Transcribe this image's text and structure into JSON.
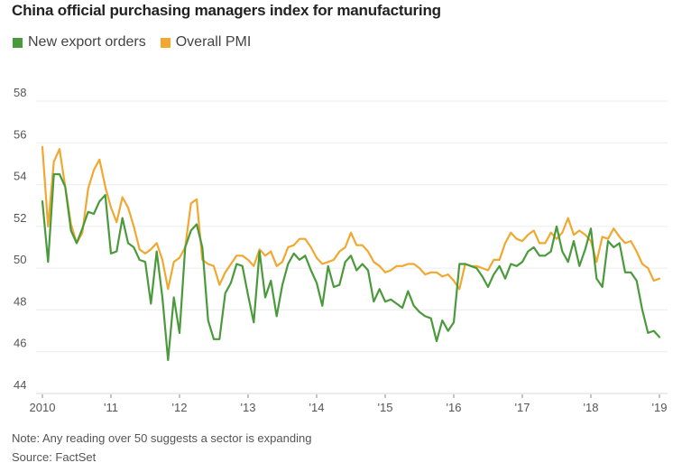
{
  "chart_data": {
    "type": "line",
    "title": "China official purchasing managers index for manufacturing",
    "xlabel": "",
    "ylabel": "",
    "ylim": [
      44,
      58
    ],
    "yticks": [
      44,
      46,
      48,
      50,
      52,
      54,
      56,
      58
    ],
    "xlim": [
      "2010-01",
      "2019-01"
    ],
    "xticks": [
      {
        "year": 2010,
        "label": "2010"
      },
      {
        "year": 2011,
        "label": "'11"
      },
      {
        "year": 2012,
        "label": "'12"
      },
      {
        "year": 2013,
        "label": "'13"
      },
      {
        "year": 2014,
        "label": "'14"
      },
      {
        "year": 2015,
        "label": "'15"
      },
      {
        "year": 2016,
        "label": "'16"
      },
      {
        "year": 2017,
        "label": "'17"
      },
      {
        "year": 2018,
        "label": "'18"
      },
      {
        "year": 2019,
        "label": "'19"
      }
    ],
    "grid": true,
    "legend": "top-left",
    "frequency": "monthly",
    "start": "2010-01",
    "series": [
      {
        "name": "New export orders",
        "color": "#4a9a3c",
        "values": [
          53.2,
          50.3,
          54.5,
          54.5,
          53.9,
          51.8,
          51.2,
          51.9,
          52.7,
          52.6,
          53.2,
          53.5,
          50.7,
          50.8,
          52.4,
          51.2,
          51.0,
          50.4,
          50.3,
          48.3,
          50.8,
          48.6,
          45.6,
          48.6,
          46.9,
          51.0,
          51.8,
          52.1,
          51.0,
          47.5,
          46.6,
          46.6,
          48.8,
          49.3,
          50.2,
          50.1,
          48.7,
          47.4,
          50.8,
          48.6,
          49.4,
          47.7,
          49.2,
          50.2,
          50.7,
          50.4,
          50.6,
          49.9,
          49.3,
          48.2,
          50.1,
          49.1,
          49.2,
          50.3,
          50.6,
          49.9,
          50.2,
          49.9,
          48.4,
          49.0,
          48.4,
          48.5,
          48.3,
          48.1,
          48.9,
          48.2,
          47.9,
          47.7,
          47.6,
          46.5,
          47.5,
          47.0,
          47.4,
          50.2,
          50.2,
          50.1,
          50.0,
          49.6,
          49.1,
          49.7,
          50.1,
          49.5,
          50.2,
          50.1,
          50.3,
          50.8,
          51.0,
          50.6,
          50.6,
          50.8,
          52.0,
          50.8,
          50.3,
          51.3,
          50.1,
          50.9,
          51.9,
          49.5,
          49.1,
          51.3,
          51.0,
          51.2,
          49.8,
          49.8,
          49.4,
          48.0,
          46.9,
          47.0,
          46.7
        ]
      },
      {
        "name": "Overall PMI",
        "color": "#f0a830",
        "values": [
          55.8,
          52.0,
          55.1,
          55.7,
          53.9,
          52.1,
          51.2,
          51.7,
          53.8,
          54.7,
          55.2,
          53.9,
          52.9,
          52.2,
          53.4,
          52.9,
          52.0,
          50.9,
          50.7,
          50.9,
          51.2,
          50.4,
          49.0,
          50.3,
          50.5,
          51.0,
          53.1,
          53.3,
          50.4,
          50.2,
          50.1,
          49.2,
          49.8,
          50.2,
          50.6,
          50.6,
          50.4,
          50.1,
          50.9,
          50.6,
          50.8,
          50.1,
          50.3,
          51.0,
          51.1,
          51.4,
          51.4,
          51.0,
          50.5,
          50.2,
          50.3,
          50.4,
          50.8,
          51.0,
          51.7,
          51.1,
          51.1,
          50.8,
          50.3,
          50.1,
          49.8,
          49.9,
          50.1,
          50.1,
          50.2,
          50.2,
          50.0,
          49.7,
          49.8,
          49.8,
          49.6,
          49.7,
          49.4,
          49.0,
          50.2,
          50.1,
          50.1,
          50.0,
          49.9,
          50.4,
          50.4,
          51.2,
          51.7,
          51.4,
          51.3,
          51.6,
          51.8,
          51.2,
          51.2,
          51.7,
          51.4,
          51.7,
          52.4,
          51.6,
          51.8,
          51.6,
          51.3,
          50.3,
          51.5,
          51.4,
          51.9,
          51.5,
          51.2,
          51.3,
          50.8,
          50.2,
          50.0,
          49.4,
          49.5
        ]
      }
    ]
  },
  "legend": {
    "items": [
      {
        "label": "New export orders",
        "color": "#4a9a3c"
      },
      {
        "label": "Overall PMI",
        "color": "#f0a830"
      }
    ]
  },
  "footer": {
    "note": "Note: Any reading over 50 suggests a sector is expanding",
    "source": "Source: FactSet"
  }
}
